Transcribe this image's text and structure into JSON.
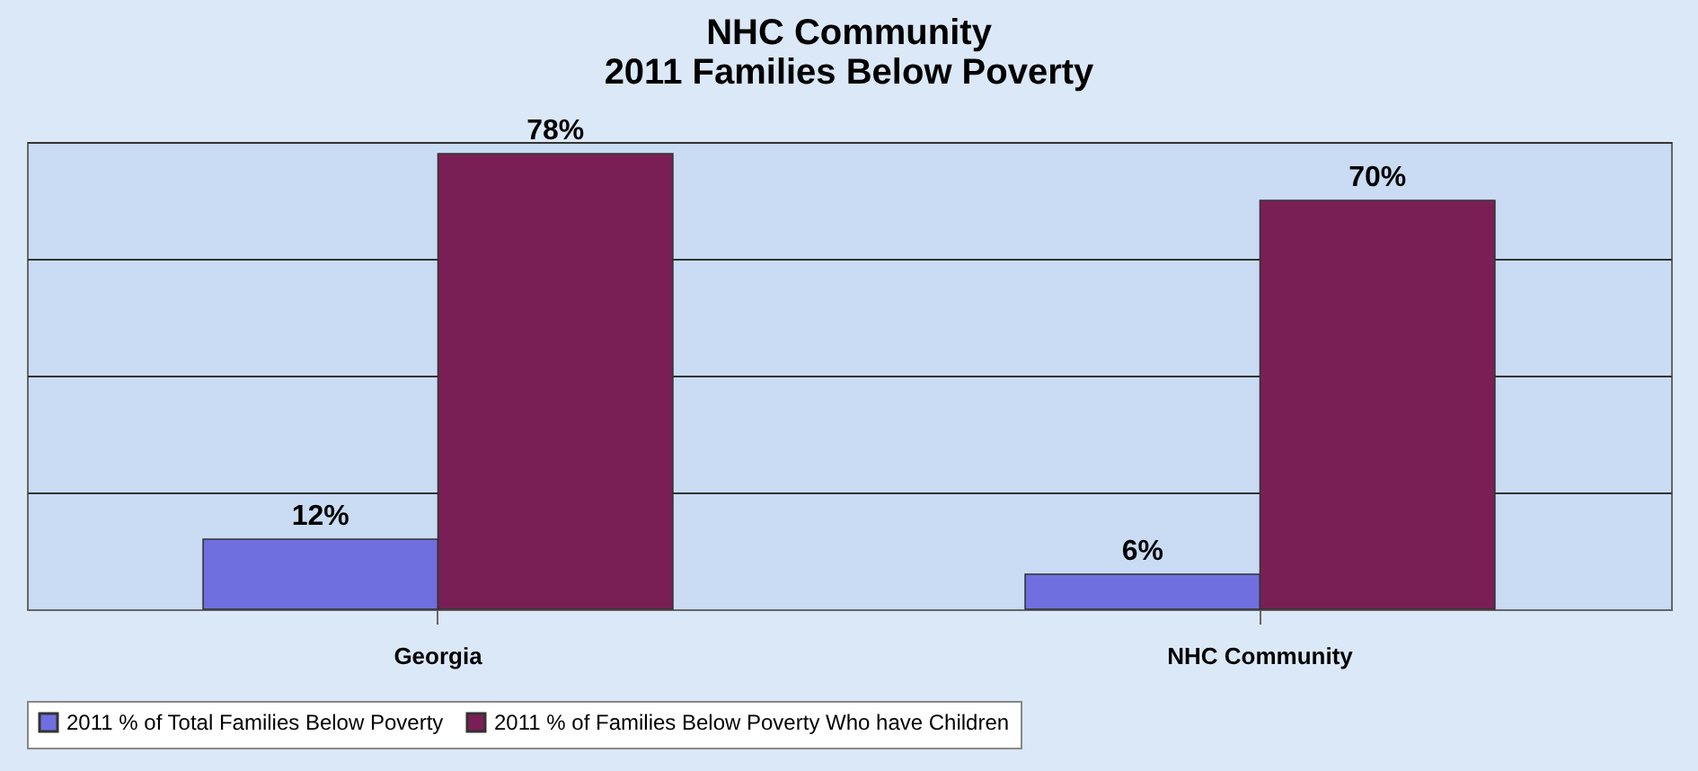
{
  "chart_data": {
    "type": "bar",
    "title": "NHC Community\n2011 Families Below Poverty",
    "categories": [
      "Georgia",
      "NHC Community"
    ],
    "series": [
      {
        "name": "2011 % of Total Families Below Poverty",
        "color": "#6f6fe0",
        "values": [
          12,
          6
        ],
        "value_labels": [
          "12%",
          "6%"
        ]
      },
      {
        "name": "2011 % of Families Below Poverty Who have Children",
        "color": "#7a1f56",
        "values": [
          78,
          70
        ],
        "value_labels": [
          "78%",
          "70%"
        ]
      }
    ],
    "tick_labels": "x",
    "grid": "y",
    "legend": "bottom"
  }
}
